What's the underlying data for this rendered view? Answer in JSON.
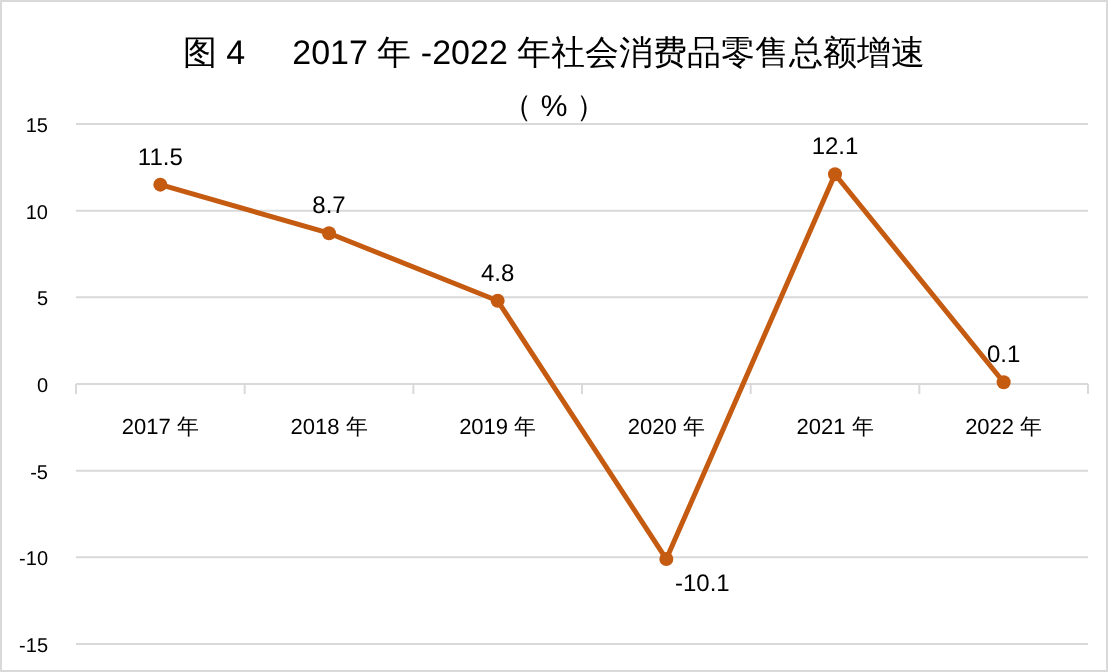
{
  "chart_data": {
    "type": "line",
    "title": "图 4     2017 年 -2022 年社会消费品零售总额增速",
    "subtitle": "（ % ）",
    "categories": [
      "2017 年",
      "2018 年",
      "2019 年",
      "2020 年",
      "2021 年",
      "2022 年"
    ],
    "series": [
      {
        "color": "#c55a11",
        "values": [
          11.5,
          8.7,
          4.8,
          -10.1,
          12.1,
          0.1
        ]
      }
    ],
    "ylim": [
      -15,
      15
    ],
    "yticks": [
      -15,
      -10,
      -5,
      0,
      5,
      10,
      15
    ],
    "grid": "y",
    "marker": "circle",
    "line_style": "solid",
    "data_labels": true
  }
}
